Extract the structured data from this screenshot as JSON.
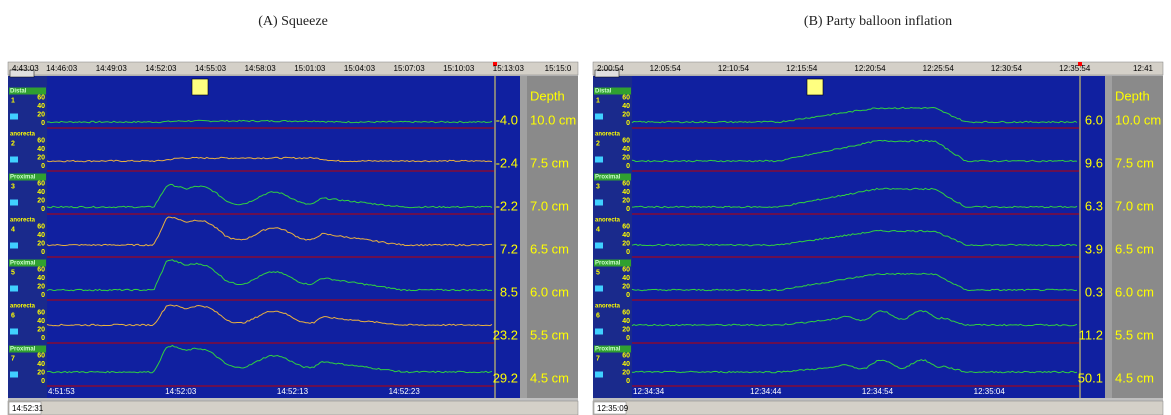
{
  "panels": [
    {
      "caption": "(A)  Squeeze",
      "top_times": [
        "4:43:03",
        "14:46:03",
        "14:49:03",
        "14:52:03",
        "14:55:03",
        "14:58:03",
        "15:01:03",
        "15:04:03",
        "15:07:03",
        "15:10:03",
        "15:13:03",
        "15:15:0"
      ],
      "depth_header": "Depth",
      "channels": [
        {
          "name": "Distal",
          "number": 1,
          "ticks": [
            60,
            40,
            20,
            0
          ],
          "reading": "-4.0",
          "depth": "10.0 cm"
        },
        {
          "name": "anorecta",
          "number": 2,
          "ticks": [
            60,
            40,
            20,
            0
          ],
          "reading": "-2.4",
          "depth": "7.5 cm"
        },
        {
          "name": "Proximal",
          "number": 3,
          "ticks": [
            60,
            40,
            20,
            0
          ],
          "reading": "-2.2",
          "depth": "7.0 cm"
        },
        {
          "name": "anorecta",
          "number": 4,
          "ticks": [
            60,
            40,
            20,
            0
          ],
          "reading": "7.2",
          "depth": "6.5 cm"
        },
        {
          "name": "Proximal",
          "number": 5,
          "ticks": [
            60,
            40,
            20,
            0
          ],
          "reading": "8.5",
          "depth": "6.0 cm"
        },
        {
          "name": "anorecta",
          "number": 6,
          "ticks": [
            60,
            40,
            20,
            0
          ],
          "reading": "23.2",
          "depth": "5.5 cm"
        },
        {
          "name": "Proximal",
          "number": 7,
          "ticks": [
            60,
            40,
            20,
            0
          ],
          "reading": "29.2",
          "depth": "4.5 cm"
        }
      ],
      "bottom_times": [
        "4:51:53",
        "14:52:03",
        "14:52:13",
        "14:52:23"
      ],
      "status_time": "14:52:31"
    },
    {
      "caption": "(B)  Party balloon inflation",
      "top_times": [
        "2:00:54",
        "12:05:54",
        "12:10:54",
        "12:15:54",
        "12:20:54",
        "12:25:54",
        "12:30:54",
        "12:35:54",
        "12:41"
      ],
      "depth_header": "Depth",
      "channels": [
        {
          "name": "Distal",
          "number": 1,
          "ticks": [
            60,
            40,
            20,
            0
          ],
          "reading": "6.0",
          "depth": "10.0 cm"
        },
        {
          "name": "anorecta",
          "number": 2,
          "ticks": [
            60,
            40,
            20,
            0
          ],
          "reading": "9.6",
          "depth": "7.5 cm"
        },
        {
          "name": "Proximal",
          "number": 3,
          "ticks": [
            60,
            40,
            20,
            0
          ],
          "reading": "6.3",
          "depth": "7.0 cm"
        },
        {
          "name": "anorecta",
          "number": 4,
          "ticks": [
            60,
            40,
            20,
            0
          ],
          "reading": "3.9",
          "depth": "6.5 cm"
        },
        {
          "name": "Proximal",
          "number": 5,
          "ticks": [
            60,
            40,
            20,
            0
          ],
          "reading": "0.3",
          "depth": "6.0 cm"
        },
        {
          "name": "anorecta",
          "number": 6,
          "ticks": [
            60,
            40,
            20,
            0
          ],
          "reading": "11.2",
          "depth": "5.5 cm"
        },
        {
          "name": "Proximal",
          "number": 7,
          "ticks": [
            60,
            40,
            20,
            0
          ],
          "reading": "50.1",
          "depth": "4.5 cm"
        }
      ],
      "bottom_times": [
        "12:34:34",
        "12:34:44",
        "12:34:54",
        "12:35:04"
      ],
      "status_time": "12:35:09"
    }
  ]
}
